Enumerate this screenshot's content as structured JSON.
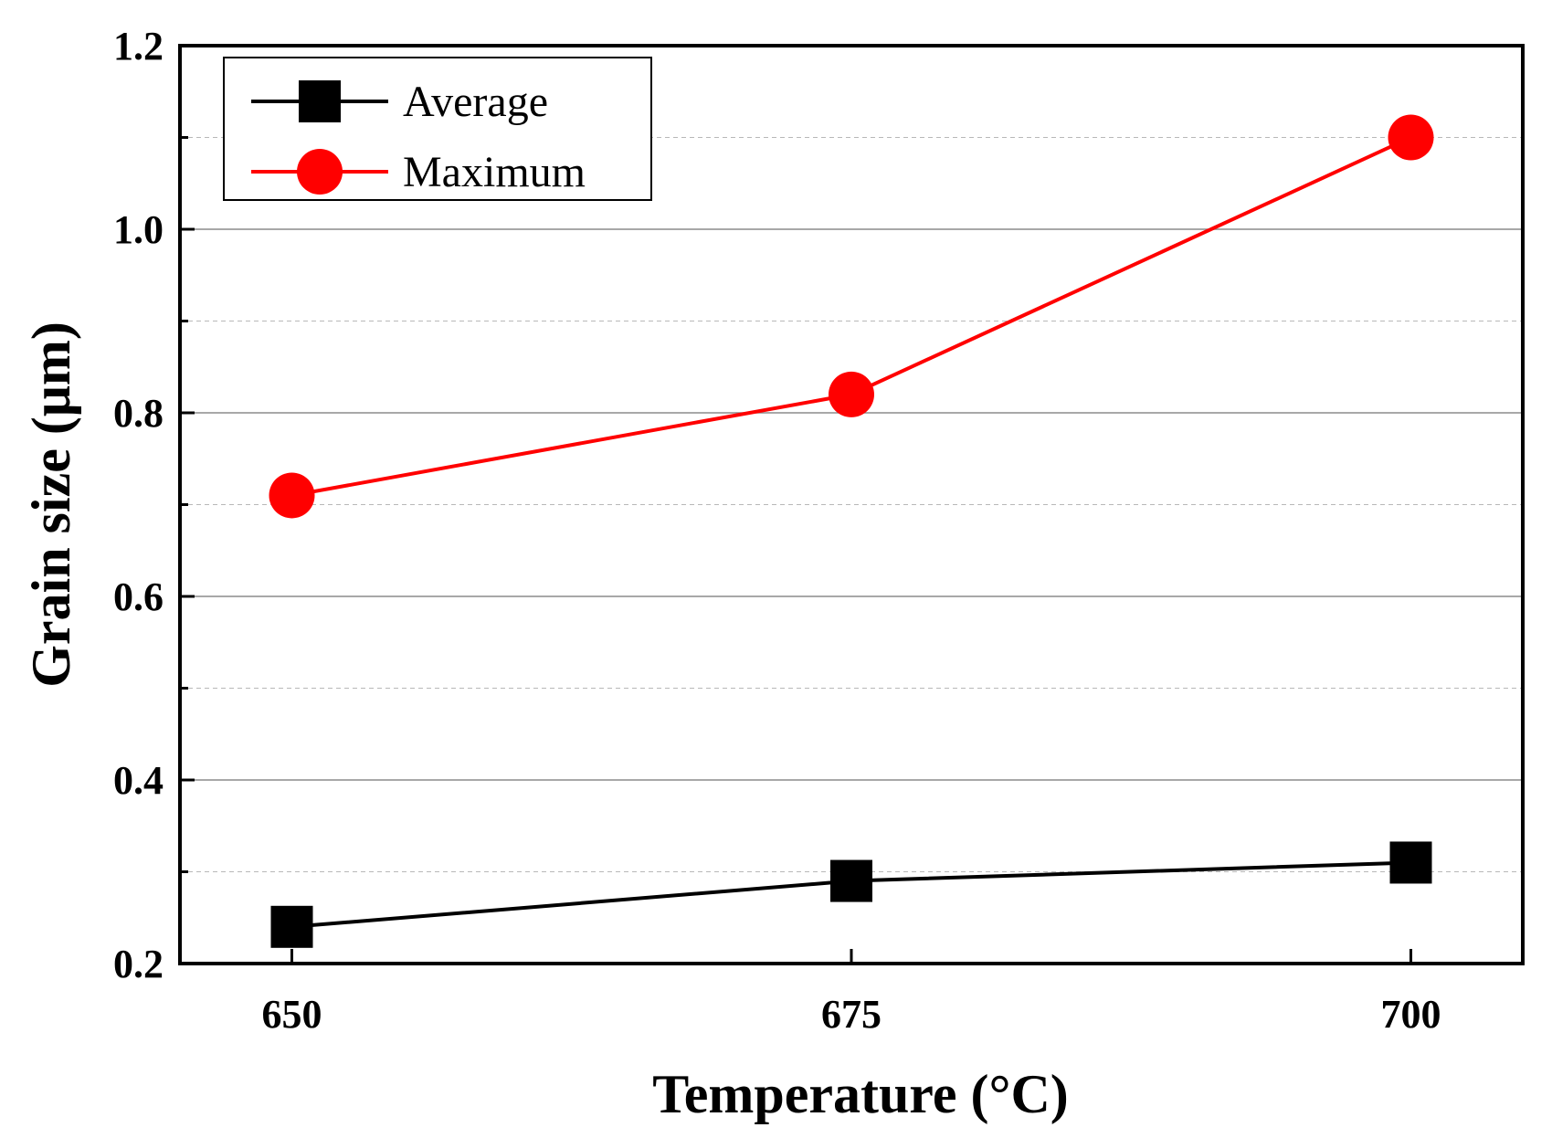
{
  "chart_data": {
    "type": "line",
    "title": "",
    "xlabel": "Temperature (°C)",
    "ylabel": "Grain size (μm)",
    "x": [
      650,
      675,
      700
    ],
    "x_tick_labels": [
      "650",
      "675",
      "700"
    ],
    "xlim": [
      645,
      705
    ],
    "ylim": [
      0.2,
      1.2
    ],
    "y_ticks": [
      0.2,
      0.4,
      0.6,
      0.8,
      1.0,
      1.2
    ],
    "y_tick_labels": [
      "0.2",
      "0.4",
      "0.6",
      "0.8",
      "1.0",
      "1.2"
    ],
    "y_minor_ticks": [
      0.3,
      0.5,
      0.7,
      0.9,
      1.1
    ],
    "grid": true,
    "legend_position": "top-left",
    "series": [
      {
        "name": "Average",
        "values": [
          0.24,
          0.29,
          0.31
        ],
        "color": "#000000",
        "marker": "square"
      },
      {
        "name": "Maximum",
        "values": [
          0.71,
          0.82,
          1.1
        ],
        "color": "#ff0000",
        "marker": "circle"
      }
    ]
  }
}
